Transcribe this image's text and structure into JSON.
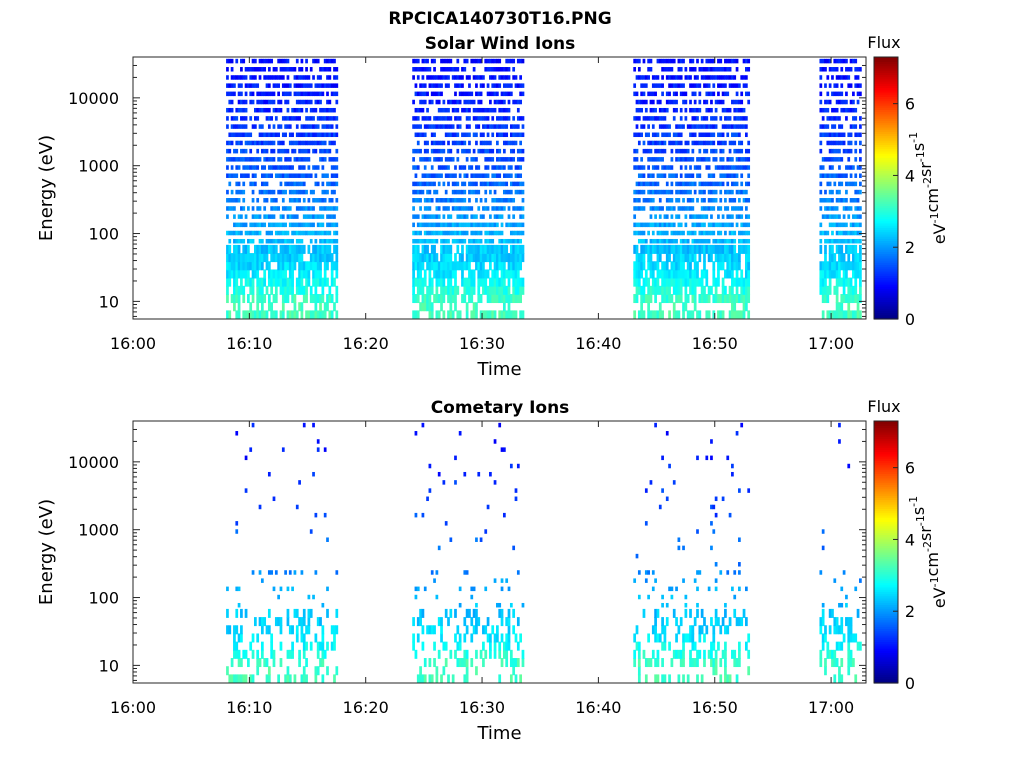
{
  "figure": {
    "title": "RPCICA140730T16.PNG"
  },
  "colorbar": {
    "label": "Flux",
    "unit_base": "eV",
    "unit_text": [
      "eV",
      "-1",
      "cm",
      "-2",
      "sr",
      "-1",
      "s",
      "-1"
    ],
    "ticks": [
      "0",
      "2",
      "4",
      "6"
    ],
    "range": [
      0,
      7.3
    ],
    "colormap": [
      "#00007f",
      "#0000ff",
      "#007fff",
      "#00ffff",
      "#7fff7f",
      "#ffff00",
      "#ff7f00",
      "#ff0000",
      "#7f0000"
    ]
  },
  "chart_data": [
    {
      "type": "heatmap",
      "title": "Solar Wind Ions",
      "xlabel": "Time",
      "ylabel": "Energy (eV)",
      "x_ticks": [
        "16:00",
        "16:10",
        "16:20",
        "16:30",
        "16:40",
        "16:50",
        "17:00"
      ],
      "x_range_minutes": [
        0,
        63
      ],
      "y_scale": "log",
      "y_ticks": [
        "10",
        "100",
        "1000",
        "10000"
      ],
      "y_range": [
        5.5,
        40000
      ],
      "data_intervals": [
        {
          "start": "16:08",
          "end": "16:17.5"
        },
        {
          "start": "16:24",
          "end": "16:33.5"
        },
        {
          "start": "16:43",
          "end": "16:53"
        },
        {
          "start": "16:59",
          "end": "17:02.5"
        }
      ],
      "flux_by_energy": [
        {
          "energy": 10,
          "flux": 3.2
        },
        {
          "energy": 30,
          "flux": 2.5
        },
        {
          "energy": 100,
          "flux": 2.2
        },
        {
          "energy": 300,
          "flux": 1.8
        },
        {
          "energy": 1000,
          "flux": 1.5
        },
        {
          "energy": 3000,
          "flux": 1.3
        },
        {
          "energy": 10000,
          "flux": 1.1
        },
        {
          "energy": 30000,
          "flux": 1.0
        }
      ],
      "density": "dense"
    },
    {
      "type": "heatmap",
      "title": "Cometary Ions",
      "xlabel": "Time",
      "ylabel": "Energy (eV)",
      "x_ticks": [
        "16:00",
        "16:10",
        "16:20",
        "16:30",
        "16:40",
        "16:50",
        "17:00"
      ],
      "x_range_minutes": [
        0,
        63
      ],
      "y_scale": "log",
      "y_ticks": [
        "10",
        "100",
        "1000",
        "10000"
      ],
      "y_range": [
        5.5,
        40000
      ],
      "data_intervals": [
        {
          "start": "16:08",
          "end": "16:17.5"
        },
        {
          "start": "16:24",
          "end": "16:33.5"
        },
        {
          "start": "16:43",
          "end": "16:53"
        },
        {
          "start": "16:59",
          "end": "17:02.5"
        }
      ],
      "flux_by_energy": [
        {
          "energy": 10,
          "flux": 3.2
        },
        {
          "energy": 30,
          "flux": 2.5
        },
        {
          "energy": 100,
          "flux": 2.2
        },
        {
          "energy": 300,
          "flux": 1.8
        },
        {
          "energy": 1000,
          "flux": 1.5
        },
        {
          "energy": 3000,
          "flux": 1.3
        },
        {
          "energy": 10000,
          "flux": 1.1
        },
        {
          "energy": 30000,
          "flux": 1.0
        }
      ],
      "density": "sparse"
    }
  ]
}
